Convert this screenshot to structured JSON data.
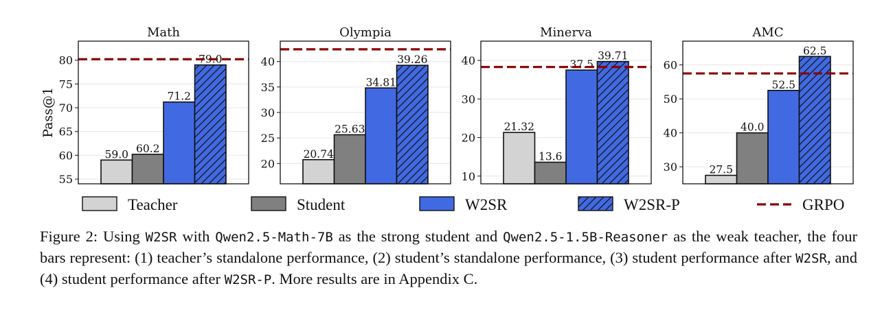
{
  "chart_data": {
    "type": "bar",
    "categories": [
      "Teacher",
      "Student",
      "W2SR",
      "W2SR-P"
    ],
    "ylabel": "Pass@1",
    "legend": {
      "placement": "bottom",
      "entries": [
        "Teacher",
        "Student",
        "W2SR",
        "W2SR-P",
        "GRPO"
      ]
    },
    "colors": {
      "Teacher": "#d3d3d3",
      "Student": "#808080",
      "W2SR": "#4169e1",
      "W2SR-P": "#4169e1",
      "GRPO": "#8b0000"
    },
    "hatch": {
      "W2SR-P": "diagonal"
    },
    "grid": true,
    "panels": [
      {
        "title": "Math",
        "values": [
          59.0,
          60.2,
          71.2,
          79.0
        ],
        "labels": [
          "59.0",
          "60.2",
          "71.2",
          "79.0"
        ],
        "grpo": 80.2,
        "ylim": [
          54,
          84
        ],
        "yticks": [
          55,
          60,
          65,
          70,
          75,
          80
        ]
      },
      {
        "title": "Olympia",
        "values": [
          20.74,
          25.63,
          34.81,
          39.26
        ],
        "labels": [
          "20.74",
          "25.63",
          "34.81",
          "39.26"
        ],
        "grpo": 42.4,
        "ylim": [
          16,
          44
        ],
        "yticks": [
          20,
          25,
          30,
          35,
          40
        ]
      },
      {
        "title": "Minerva",
        "values": [
          21.32,
          13.6,
          37.5,
          39.71
        ],
        "labels": [
          "21.32",
          "13.6",
          "37.5",
          "39.71"
        ],
        "grpo": 38.3,
        "ylim": [
          8,
          45
        ],
        "yticks": [
          10,
          20,
          30,
          40
        ]
      },
      {
        "title": "AMC",
        "values": [
          27.5,
          40.0,
          52.5,
          62.5
        ],
        "labels": [
          "27.5",
          "40.0",
          "52.5",
          "62.5"
        ],
        "grpo": 57.5,
        "ylim": [
          25,
          67
        ],
        "yticks": [
          30,
          40,
          50,
          60
        ]
      }
    ]
  },
  "caption": {
    "line1_a": "Figure 2: Using ",
    "line1_code1": "W2SR",
    "line1_b": " with ",
    "line1_code2": "Qwen2.5-Math-7B",
    "line1_c": " as the strong student and ",
    "line1_code3": "Qwen2.5-1.5B-Reasoner",
    "line1_d": " as the",
    "line2": "weak teacher, the four bars represent: (1) teacher’s standalone performance, (2) student’s standalone performance,",
    "line3_a": "(3) student performance after ",
    "line3_code1": "W2SR",
    "line3_b": ", and (4) student performance after ",
    "line3_code2": "W2SR-P",
    "line3_c": ". More results are in Appendix C."
  }
}
